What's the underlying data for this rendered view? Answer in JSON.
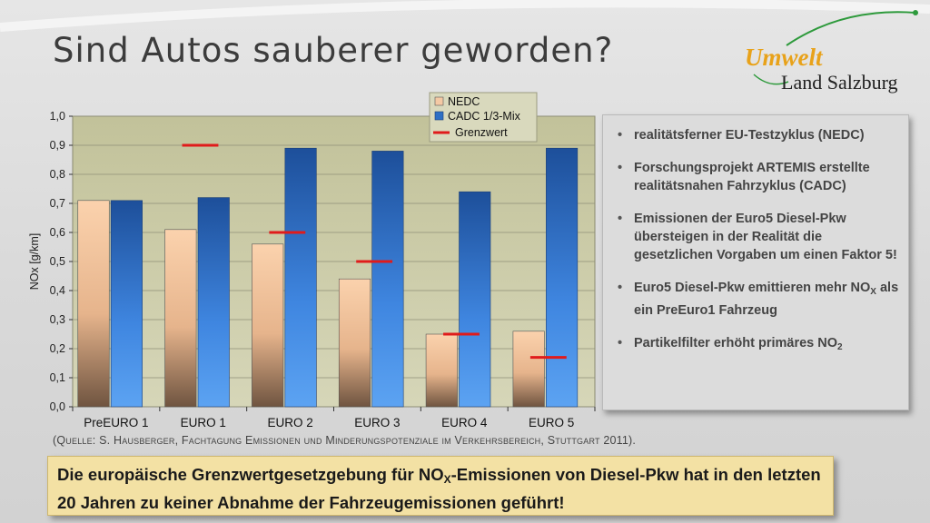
{
  "slide": {
    "title": "Sind Autos sauberer geworden?",
    "logo_line1": "Umwelt",
    "logo_line2": "Land Salzburg",
    "source": "(Quelle: S. Hausberger, Fachtagung Emissionen und Minderungspotenziale im Verkehrsbereich, Stuttgart 2011).",
    "conclusion_part1": "Die europäische Grenzwertgesetzgebung für NO",
    "conclusion_sub": "X",
    "conclusion_part2": "-Emissionen von Diesel-Pkw hat in den letzten 20 Jahren zu keiner Abnahme der Fahrzeugemissionen geführt!"
  },
  "bullets": [
    {
      "text": "realitätsferner EU-Testzyklus (NEDC)"
    },
    {
      "text": "Forschungsprojekt ARTEMIS erstellte realitätsnahen Fahrzyklus (CADC)"
    },
    {
      "text": "Emissionen der Euro5 Diesel-Pkw übersteigen in der Realität die gesetzlichen Vorgaben um einen Faktor 5!"
    },
    {
      "text": "Euro5 Diesel-Pkw emittieren mehr NO",
      "sub": "X",
      "after": " als ein PreEuro1 Fahrzeug"
    },
    {
      "text": "Partikelfilter erhöht primäres NO",
      "sub": "2",
      "after": ""
    }
  ],
  "colors": {
    "nedc": "#f4c9a4",
    "cadc": "#2e6fc4",
    "limit": "#e01b1b",
    "plot_bg": "#c9c9a5"
  },
  "chart_data": {
    "type": "bar",
    "categories": [
      "PreEURO 1",
      "EURO 1",
      "EURO 2",
      "EURO 3",
      "EURO 4",
      "EURO 5"
    ],
    "series": [
      {
        "name": "NEDC",
        "values": [
          0.71,
          0.61,
          0.56,
          0.44,
          0.25,
          0.26
        ]
      },
      {
        "name": "CADC 1/3-Mix",
        "values": [
          0.71,
          0.72,
          0.89,
          0.88,
          0.74,
          0.89
        ]
      }
    ],
    "limits": {
      "name": "Grenzwert",
      "values": [
        null,
        0.9,
        0.6,
        0.5,
        0.25,
        0.17
      ]
    },
    "ylabel": "NOx [g/km]",
    "ylim": [
      0,
      1.0
    ],
    "yticks": [
      "0,0",
      "0,1",
      "0,2",
      "0,3",
      "0,4",
      "0,5",
      "0,6",
      "0,7",
      "0,8",
      "0,9",
      "1,0"
    ],
    "legend_position": "top-right",
    "grid": true
  }
}
